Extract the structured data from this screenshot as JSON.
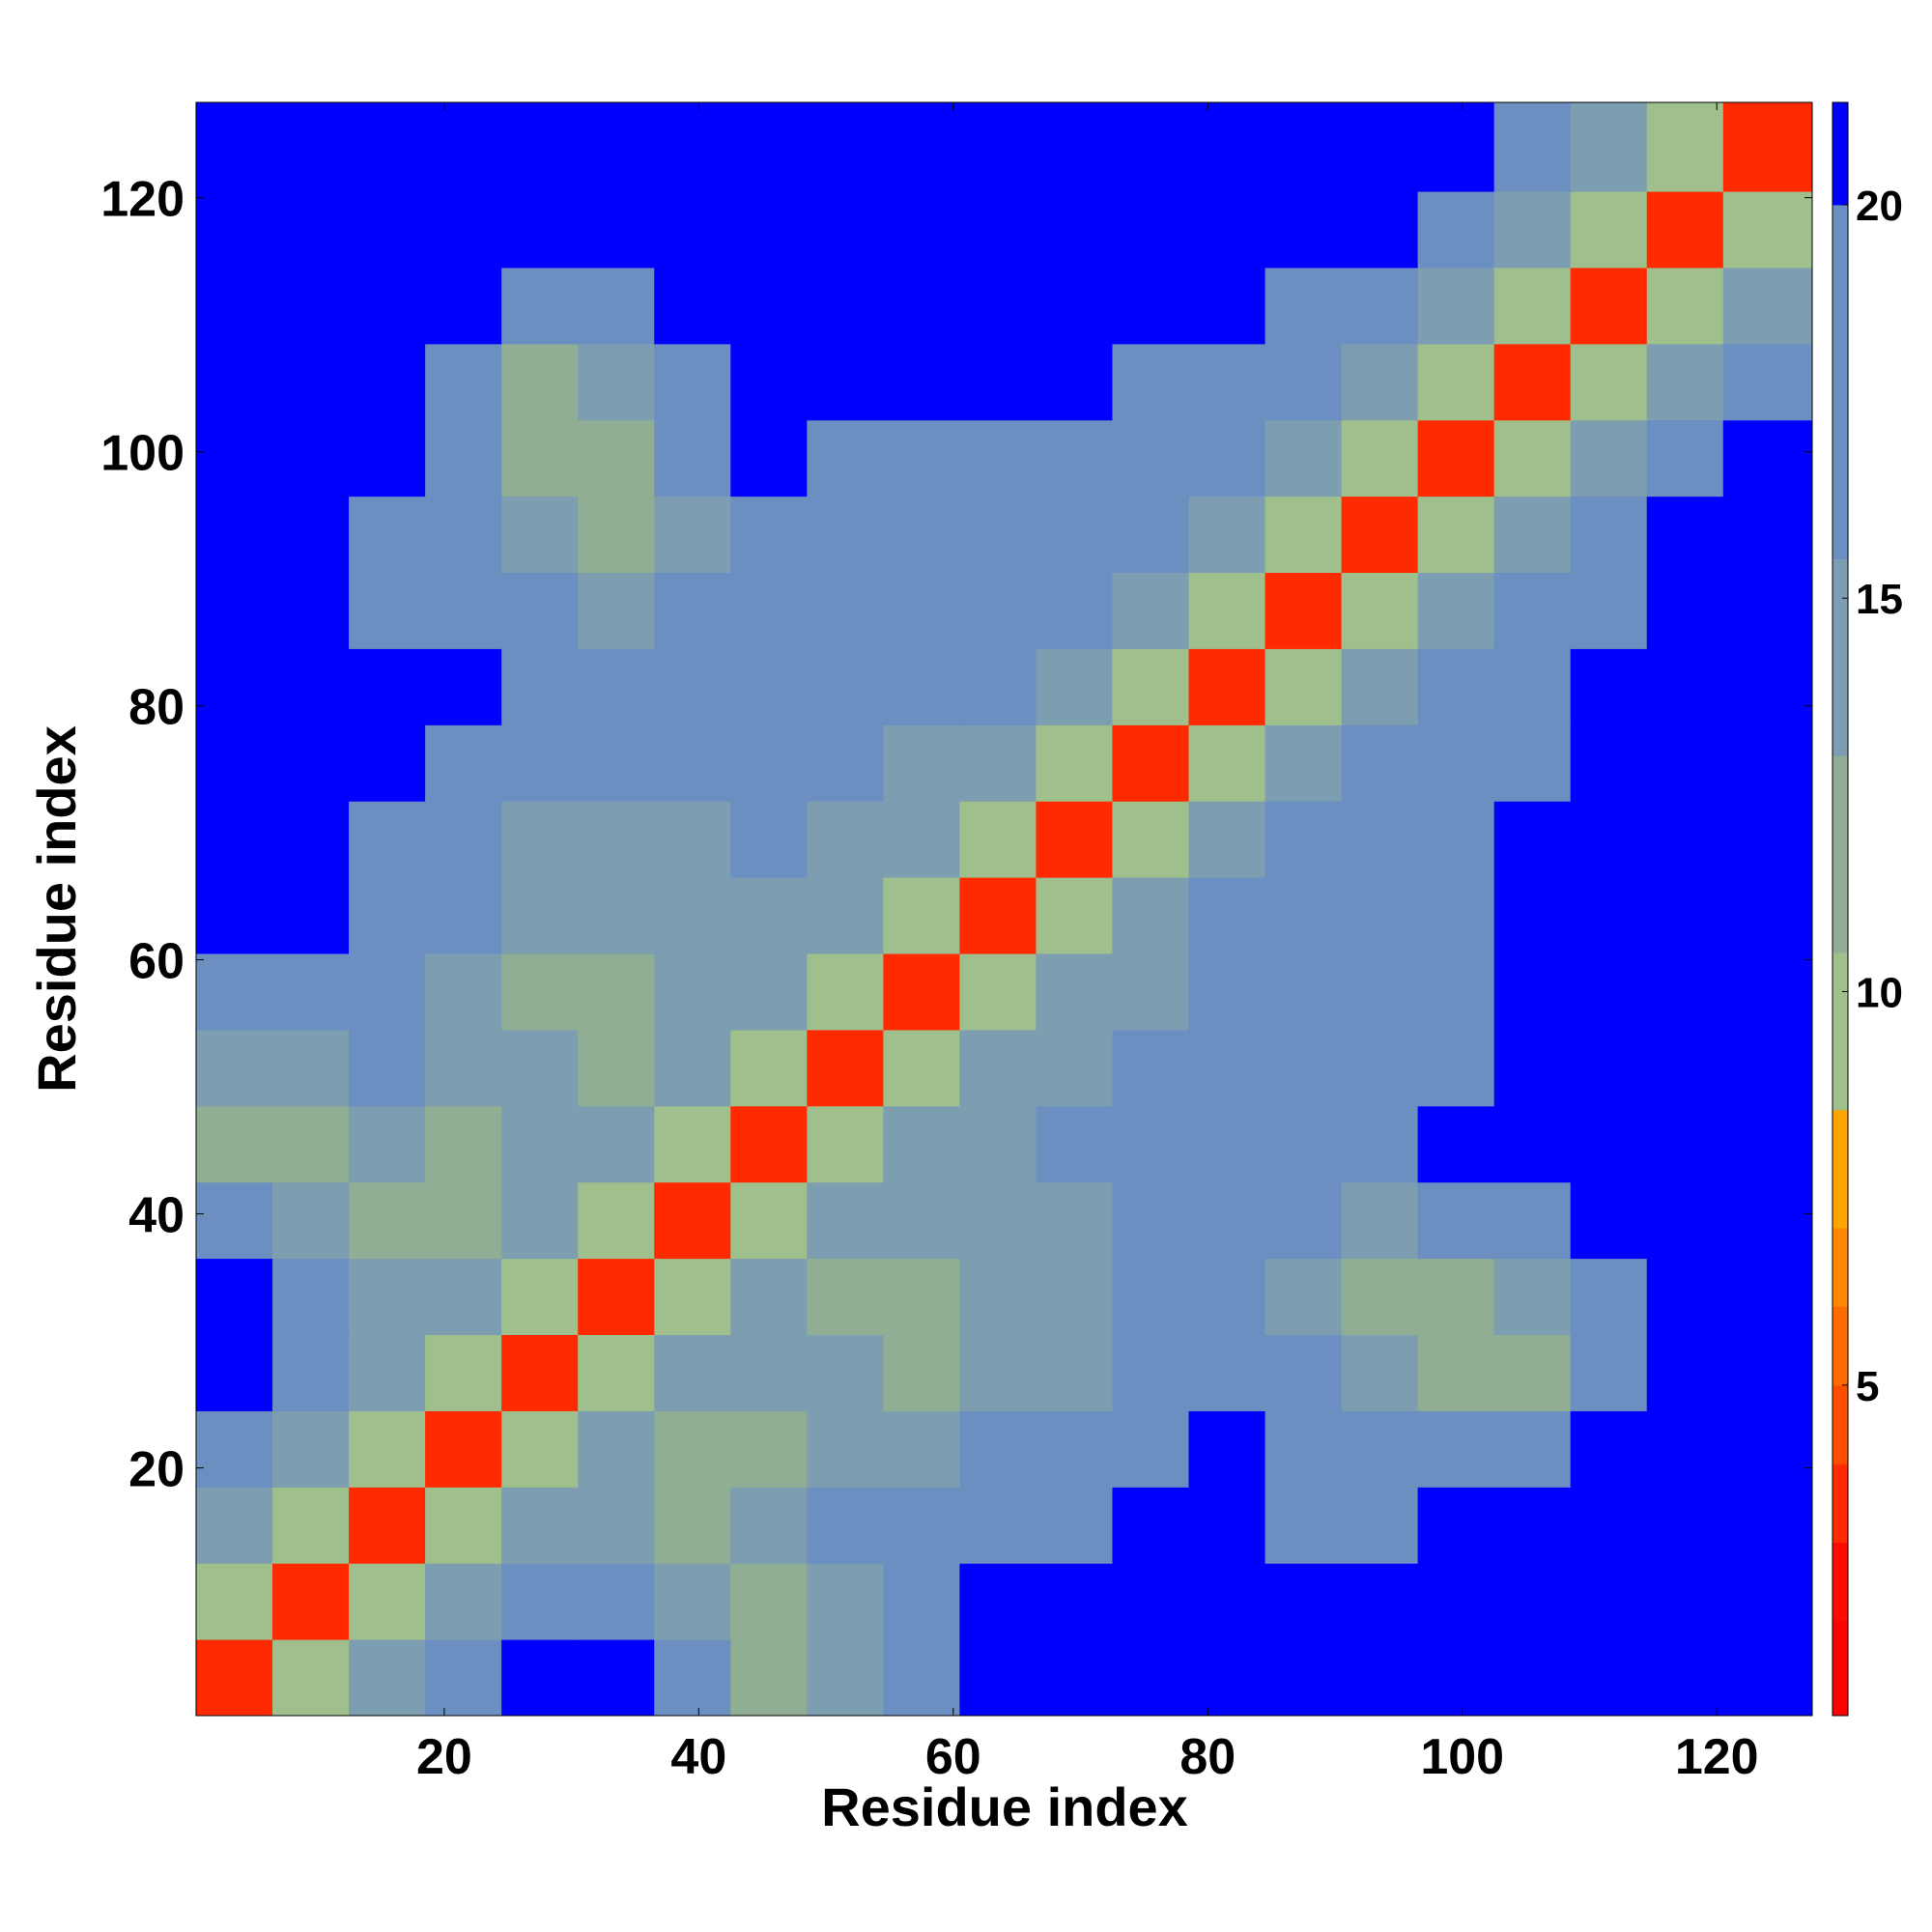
{
  "chart_data": {
    "type": "heatmap",
    "xlabel": "Residue index",
    "ylabel": "Residue index",
    "x_edges": [
      0.5,
      6.5,
      12.5,
      18.5,
      24.5,
      30.5,
      36.5,
      42.5,
      48.5,
      54.5,
      60.5,
      66.5,
      72.5,
      78.5,
      84.5,
      90.5,
      96.5,
      102.5,
      108.5,
      114.5,
      120.5,
      127.5
    ],
    "y_edges": [
      0.5,
      6.5,
      12.5,
      18.5,
      24.5,
      30.5,
      36.5,
      42.5,
      48.5,
      54.5,
      60.5,
      66.5,
      72.5,
      78.5,
      84.5,
      90.5,
      96.5,
      102.5,
      108.5,
      114.5,
      120.5,
      127.5
    ],
    "xlim": [
      0.5,
      127.5
    ],
    "ylim": [
      0.5,
      127.5
    ],
    "xticks": [
      20,
      40,
      60,
      80,
      100,
      120
    ],
    "yticks": [
      20,
      40,
      60,
      80,
      100,
      120
    ],
    "z": [
      [
        3,
        10,
        15,
        17,
        21,
        21,
        16,
        11,
        15,
        19,
        21,
        21,
        21,
        21,
        21,
        21,
        21,
        21,
        21,
        21,
        21
      ],
      [
        10,
        3,
        10,
        15,
        19,
        17,
        13,
        12,
        15,
        17,
        20,
        21,
        21,
        20,
        21,
        21,
        21,
        21,
        21,
        21,
        21
      ],
      [
        15,
        10,
        3,
        10,
        14,
        15,
        12,
        13,
        16,
        16,
        18,
        19,
        20,
        20,
        19,
        19,
        20,
        21,
        21,
        21,
        21
      ],
      [
        17,
        15,
        10,
        3,
        10,
        13,
        12,
        12,
        14,
        15,
        16,
        17,
        19,
        20,
        19,
        19,
        19,
        19,
        21,
        21,
        21
      ],
      [
        21,
        19,
        14,
        10,
        3,
        10,
        14,
        13,
        13,
        12,
        14,
        15,
        18,
        17,
        16,
        13,
        11,
        12,
        19,
        21,
        21
      ],
      [
        21,
        17,
        15,
        13,
        10,
        3,
        10,
        14,
        12,
        12,
        14,
        15,
        16,
        16,
        14,
        12,
        11,
        14,
        19,
        21,
        21
      ],
      [
        16,
        13,
        12,
        12,
        14,
        10,
        3,
        10,
        13,
        13,
        14,
        15,
        17,
        17,
        16,
        15,
        16,
        18,
        21,
        21,
        21
      ],
      [
        11,
        12,
        13,
        12,
        13,
        14,
        10,
        3,
        10,
        13,
        15,
        16,
        17,
        18,
        18,
        19,
        20,
        21,
        21,
        21,
        21
      ],
      [
        15,
        15,
        16,
        14,
        13,
        12,
        13,
        10,
        3,
        10,
        14,
        13,
        16,
        17,
        19,
        19,
        19,
        21,
        21,
        21,
        21
      ],
      [
        19,
        17,
        16,
        15,
        12,
        12,
        13,
        13,
        10,
        3,
        10,
        13,
        14,
        17,
        18,
        18,
        19,
        20,
        21,
        21,
        21
      ],
      [
        21,
        20,
        18,
        16,
        14,
        14,
        14,
        15,
        14,
        10,
        3,
        10,
        14,
        16,
        18,
        19,
        19,
        20,
        21,
        21,
        21
      ],
      [
        21,
        21,
        19,
        17,
        15,
        15,
        15,
        16,
        13,
        13,
        10,
        3,
        10,
        14,
        17,
        18,
        19,
        20,
        21,
        21,
        21
      ],
      [
        21,
        21,
        20,
        19,
        18,
        16,
        17,
        17,
        16,
        14,
        14,
        10,
        3,
        10,
        15,
        17,
        18,
        19,
        21,
        21,
        21
      ],
      [
        21,
        20,
        20,
        20,
        17,
        16,
        17,
        18,
        17,
        17,
        16,
        14,
        10,
        3,
        10,
        15,
        17,
        19,
        21,
        21,
        21
      ],
      [
        21,
        21,
        19,
        19,
        16,
        14,
        16,
        18,
        19,
        18,
        18,
        17,
        15,
        10,
        3,
        10,
        15,
        17,
        19,
        21,
        21
      ],
      [
        21,
        21,
        19,
        19,
        13,
        12,
        15,
        19,
        19,
        18,
        19,
        18,
        17,
        15,
        10,
        3,
        10,
        15,
        17,
        21,
        21
      ],
      [
        21,
        21,
        20,
        19,
        11,
        11,
        16,
        20,
        19,
        19,
        19,
        19,
        18,
        17,
        15,
        10,
        3,
        10,
        15,
        17,
        21
      ],
      [
        21,
        21,
        21,
        19,
        12,
        14,
        18,
        21,
        21,
        20,
        20,
        20,
        19,
        19,
        17,
        15,
        10,
        3,
        10,
        15,
        17
      ],
      [
        21,
        21,
        21,
        21,
        19,
        19,
        21,
        21,
        21,
        21,
        21,
        21,
        21,
        21,
        19,
        17,
        15,
        10,
        3,
        10,
        15
      ],
      [
        21,
        21,
        21,
        21,
        21,
        21,
        21,
        21,
        21,
        21,
        21,
        21,
        21,
        21,
        21,
        21,
        17,
        15,
        10,
        3,
        10
      ],
      [
        21,
        21,
        21,
        21,
        21,
        21,
        21,
        21,
        21,
        21,
        21,
        21,
        21,
        21,
        21,
        21,
        21,
        17,
        15,
        10,
        3
      ]
    ],
    "colorbar": {
      "lim": [
        0.8,
        21.3
      ],
      "boundaries": [
        0.8,
        2,
        3,
        4,
        5,
        6,
        7,
        8.5,
        10.5,
        13,
        15.5,
        20,
        21.3
      ],
      "colors": [
        "#ff0000",
        "#ff0a00",
        "#ff2a00",
        "#ff4d00",
        "#ff6a00",
        "#ff8800",
        "#ffa500",
        "#9fbf8c",
        "#8fae93",
        "#7d9db0",
        "#6b8fc0",
        "#0000ff"
      ],
      "ticks": [
        5,
        10,
        15,
        20
      ]
    }
  }
}
